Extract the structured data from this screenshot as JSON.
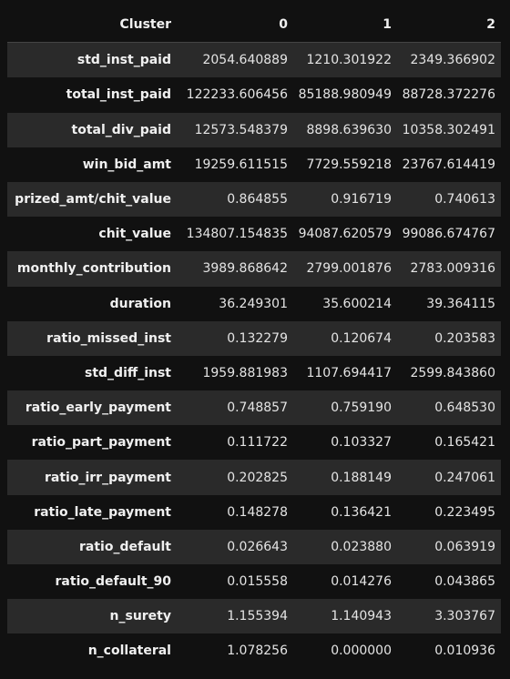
{
  "table": {
    "index_name": "Cluster",
    "columns": [
      "0",
      "1",
      "2"
    ],
    "rows": [
      {
        "label": "std_inst_paid",
        "values": [
          "2054.640889",
          "1210.301922",
          "2349.366902"
        ]
      },
      {
        "label": "total_inst_paid",
        "values": [
          "122233.606456",
          "85188.980949",
          "88728.372276"
        ]
      },
      {
        "label": "total_div_paid",
        "values": [
          "12573.548379",
          "8898.639630",
          "10358.302491"
        ]
      },
      {
        "label": "win_bid_amt",
        "values": [
          "19259.611515",
          "7729.559218",
          "23767.614419"
        ]
      },
      {
        "label": "prized_amt/chit_value",
        "values": [
          "0.864855",
          "0.916719",
          "0.740613"
        ]
      },
      {
        "label": "chit_value",
        "values": [
          "134807.154835",
          "94087.620579",
          "99086.674767"
        ]
      },
      {
        "label": "monthly_contribution",
        "values": [
          "3989.868642",
          "2799.001876",
          "2783.009316"
        ]
      },
      {
        "label": "duration",
        "values": [
          "36.249301",
          "35.600214",
          "39.364115"
        ]
      },
      {
        "label": "ratio_missed_inst",
        "values": [
          "0.132279",
          "0.120674",
          "0.203583"
        ]
      },
      {
        "label": "std_diff_inst",
        "values": [
          "1959.881983",
          "1107.694417",
          "2599.843860"
        ]
      },
      {
        "label": "ratio_early_payment",
        "values": [
          "0.748857",
          "0.759190",
          "0.648530"
        ]
      },
      {
        "label": "ratio_part_payment",
        "values": [
          "0.111722",
          "0.103327",
          "0.165421"
        ]
      },
      {
        "label": "ratio_irr_payment",
        "values": [
          "0.202825",
          "0.188149",
          "0.247061"
        ]
      },
      {
        "label": "ratio_late_payment",
        "values": [
          "0.148278",
          "0.136421",
          "0.223495"
        ]
      },
      {
        "label": "ratio_default",
        "values": [
          "0.026643",
          "0.023880",
          "0.063919"
        ]
      },
      {
        "label": "ratio_default_90",
        "values": [
          "0.015558",
          "0.014276",
          "0.043865"
        ]
      },
      {
        "label": "n_surety",
        "values": [
          "1.155394",
          "1.140943",
          "3.303767"
        ]
      },
      {
        "label": "n_collateral",
        "values": [
          "1.078256",
          "0.000000",
          "0.010936"
        ]
      }
    ]
  }
}
